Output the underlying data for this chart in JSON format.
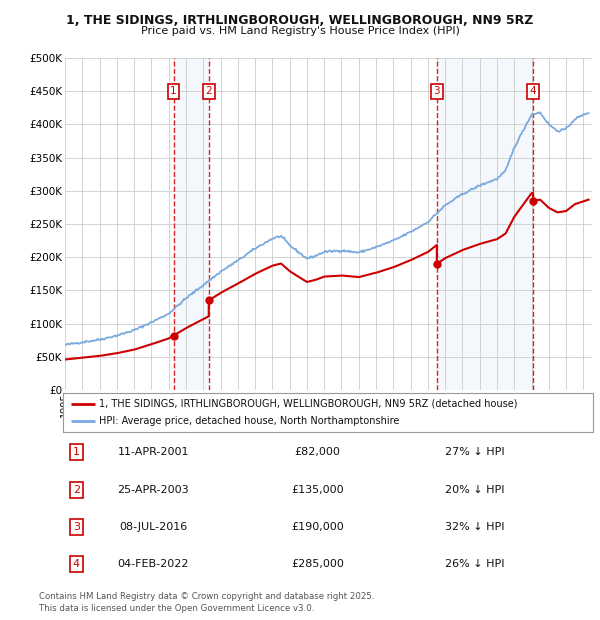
{
  "title_line1": "1, THE SIDINGS, IRTHLINGBOROUGH, WELLINGBOROUGH, NN9 5RZ",
  "title_line2": "Price paid vs. HM Land Registry's House Price Index (HPI)",
  "ylim": [
    0,
    500000
  ],
  "yticks": [
    0,
    50000,
    100000,
    150000,
    200000,
    250000,
    300000,
    350000,
    400000,
    450000,
    500000
  ],
  "ytick_labels": [
    "£0",
    "£50K",
    "£100K",
    "£150K",
    "£200K",
    "£250K",
    "£300K",
    "£350K",
    "£400K",
    "£450K",
    "£500K"
  ],
  "xlim_start": 1995.0,
  "xlim_end": 2025.5,
  "purchases": [
    {
      "num": 1,
      "year": 2001.28,
      "price": 82000,
      "date": "11-APR-2001",
      "pct": "27%",
      "dir": "↓"
    },
    {
      "num": 2,
      "year": 2003.32,
      "price": 135000,
      "date": "25-APR-2003",
      "pct": "20%",
      "dir": "↓"
    },
    {
      "num": 3,
      "year": 2016.52,
      "price": 190000,
      "date": "08-JUL-2016",
      "pct": "32%",
      "dir": "↓"
    },
    {
      "num": 4,
      "year": 2022.09,
      "price": 285000,
      "date": "04-FEB-2022",
      "pct": "26%",
      "dir": "↓"
    }
  ],
  "legend_line1": "1, THE SIDINGS, IRTHLINGBOROUGH, WELLINGBOROUGH, NN9 5RZ (detached house)",
  "legend_line2": "HPI: Average price, detached house, North Northamptonshire",
  "footer_line1": "Contains HM Land Registry data © Crown copyright and database right 2025.",
  "footer_line2": "This data is licensed under the Open Government Licence v3.0.",
  "sale_color": "#cc0000",
  "hpi_color": "#7aaadd",
  "background_color": "#ffffff",
  "grid_color": "#cccccc",
  "hpi_anchors_x": [
    1995,
    1996,
    1997,
    1998,
    1999,
    2000,
    2001,
    2002,
    2003,
    2004,
    2005,
    2006,
    2007,
    2007.5,
    2008,
    2008.5,
    2009,
    2009.5,
    2010,
    2011,
    2012,
    2013,
    2014,
    2015,
    2016,
    2017,
    2018,
    2019,
    2020,
    2020.5,
    2021,
    2021.5,
    2022,
    2022.5,
    2023,
    2023.5,
    2024,
    2024.5,
    2025.3
  ],
  "hpi_anchors_y": [
    68000,
    72000,
    76000,
    82000,
    90000,
    102000,
    115000,
    138000,
    158000,
    178000,
    195000,
    213000,
    228000,
    232000,
    218000,
    208000,
    198000,
    202000,
    208000,
    210000,
    207000,
    215000,
    225000,
    238000,
    253000,
    278000,
    295000,
    308000,
    318000,
    330000,
    365000,
    390000,
    415000,
    418000,
    400000,
    390000,
    393000,
    408000,
    418000
  ],
  "prop_segments": [
    {
      "x_start": 1995.0,
      "x_end": 2001.28,
      "price_ref": 82000,
      "year_ref": 2001.28
    },
    {
      "x_start": 2001.28,
      "x_end": 2003.32,
      "price_ref": 82000,
      "year_ref": 2001.28
    },
    {
      "x_start": 2003.32,
      "x_end": 2016.52,
      "price_ref": 135000,
      "year_ref": 2003.32
    },
    {
      "x_start": 2016.52,
      "x_end": 2022.09,
      "price_ref": 190000,
      "year_ref": 2016.52
    },
    {
      "x_start": 2022.09,
      "x_end": 2025.3,
      "price_ref": 285000,
      "year_ref": 2022.09
    }
  ]
}
